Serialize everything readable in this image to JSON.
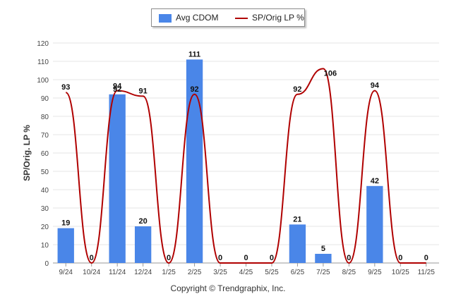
{
  "colors": {
    "bar": "#4a86e8",
    "line": "#b00000",
    "grid": "#e6e6e6",
    "axis": "#999999"
  },
  "copyright": "Copyright © Trendgraphix, Inc.",
  "chart_data": {
    "type": "bar",
    "categories": [
      "9/24",
      "10/24",
      "11/24",
      "12/24",
      "1/25",
      "2/25",
      "3/25",
      "4/25",
      "5/25",
      "6/25",
      "7/25",
      "8/25",
      "9/25",
      "10/25",
      "11/25"
    ],
    "ylabel": "SP/Orig. LP %",
    "ylim": [
      0,
      120
    ],
    "yticks": [
      0,
      10,
      20,
      30,
      40,
      50,
      60,
      70,
      80,
      90,
      100,
      110,
      120
    ],
    "grid": true,
    "legend": "top-center",
    "series": [
      {
        "name": "Avg CDOM",
        "type": "bar",
        "values": [
          19,
          0,
          92,
          20,
          0,
          111,
          0,
          0,
          0,
          21,
          5,
          0,
          42,
          0,
          0
        ],
        "labels": [
          "19",
          "0",
          "92",
          "20",
          "0",
          "111",
          "0",
          "0",
          "0",
          "21",
          "5",
          "0",
          "42",
          "0",
          "0"
        ]
      },
      {
        "name": "SP/Orig LP %",
        "type": "line",
        "values": [
          93,
          0,
          94,
          91,
          0,
          92,
          0,
          0,
          0,
          92,
          106,
          0,
          94,
          0,
          0
        ],
        "labels": [
          "93",
          "",
          "94",
          "91",
          "",
          "92",
          "",
          "",
          "",
          "92",
          "106",
          "",
          "94",
          "",
          ""
        ]
      }
    ]
  }
}
